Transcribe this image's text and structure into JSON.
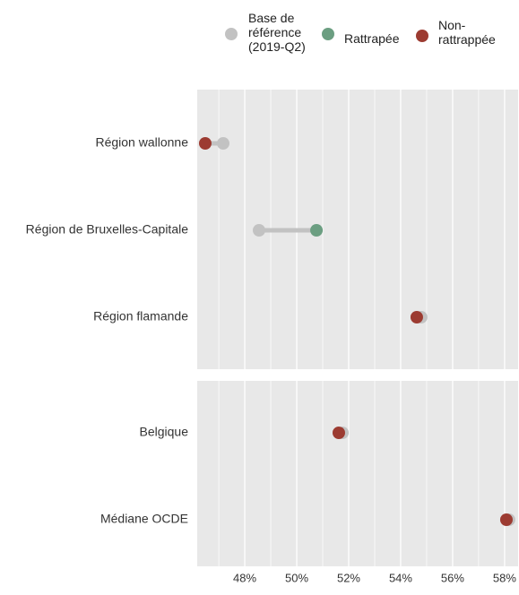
{
  "chart_data": {
    "type": "dumbbell",
    "categories": [
      "Région wallonne",
      "Région de Bruxelles-Capitale",
      "Région flamande",
      "Belgique",
      "Médiane OCDE"
    ],
    "series": [
      {
        "name": "Base de référence (2019-Q2)",
        "color": "#c2c2c2",
        "values": [
          47.17,
          48.55,
          54.79,
          51.76,
          58.17
        ]
      },
      {
        "name": "Rattrapée",
        "color": "#6b9e81",
        "values": [
          null,
          50.76,
          null,
          null,
          null
        ]
      },
      {
        "name": "Non-rattrappée",
        "color": "#9c3b31",
        "values": [
          46.48,
          null,
          54.62,
          51.62,
          58.07
        ]
      }
    ],
    "xlim": [
      46.17,
      58.52
    ],
    "xticks": [
      {
        "value": 48,
        "label": "48%"
      },
      {
        "value": 50,
        "label": "50%"
      },
      {
        "value": 52,
        "label": "52%"
      },
      {
        "value": 54,
        "label": "54%"
      },
      {
        "value": 56,
        "label": "56%"
      },
      {
        "value": 58,
        "label": "58%"
      }
    ],
    "grid": true
  }
}
